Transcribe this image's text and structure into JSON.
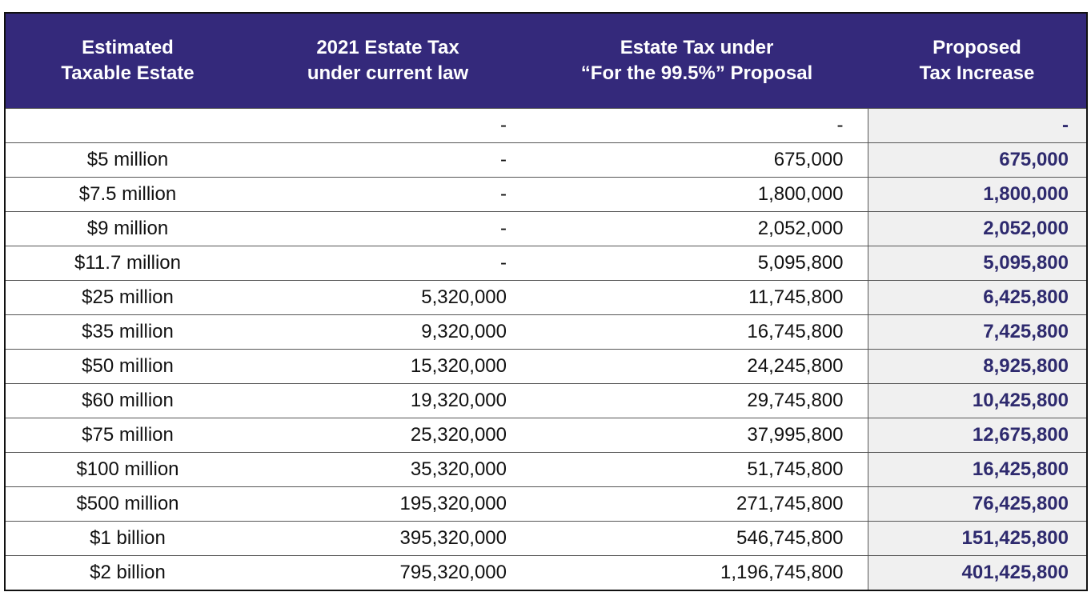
{
  "headers": [
    [
      "Estimated",
      "Taxable Estate"
    ],
    [
      "2021 Estate Tax",
      "under current law"
    ],
    [
      "Estate Tax under",
      "“For the 99.5%” Proposal"
    ],
    [
      "Proposed",
      "Tax Increase"
    ]
  ],
  "rows": [
    [
      "",
      "-",
      "-",
      "-"
    ],
    [
      "$5 million",
      "-",
      "675,000",
      "675,000"
    ],
    [
      "$7.5 million",
      "-",
      "1,800,000",
      "1,800,000"
    ],
    [
      "$9 million",
      "-",
      "2,052,000",
      "2,052,000"
    ],
    [
      "$11.7 million",
      "-",
      "5,095,800",
      "5,095,800"
    ],
    [
      "$25 million",
      "5,320,000",
      "11,745,800",
      "6,425,800"
    ],
    [
      "$35 million",
      "9,320,000",
      "16,745,800",
      "7,425,800"
    ],
    [
      "$50 million",
      "15,320,000",
      "24,245,800",
      "8,925,800"
    ],
    [
      "$60 million",
      "19,320,000",
      "29,745,800",
      "10,425,800"
    ],
    [
      "$75 million",
      "25,320,000",
      "37,995,800",
      "12,675,800"
    ],
    [
      "$100 million",
      "35,320,000",
      "51,745,800",
      "16,425,800"
    ],
    [
      "$500 million",
      "195,320,000",
      "271,745,800",
      "76,425,800"
    ],
    [
      "$1 billion",
      "395,320,000",
      "546,745,800",
      "151,425,800"
    ],
    [
      "$2 billion",
      "795,320,000",
      "1,196,745,800",
      "401,425,800"
    ]
  ],
  "colors": {
    "header_bg": "#34297b",
    "increase_text": "#2e2a6e",
    "increase_bg": "#f0f0f0"
  }
}
